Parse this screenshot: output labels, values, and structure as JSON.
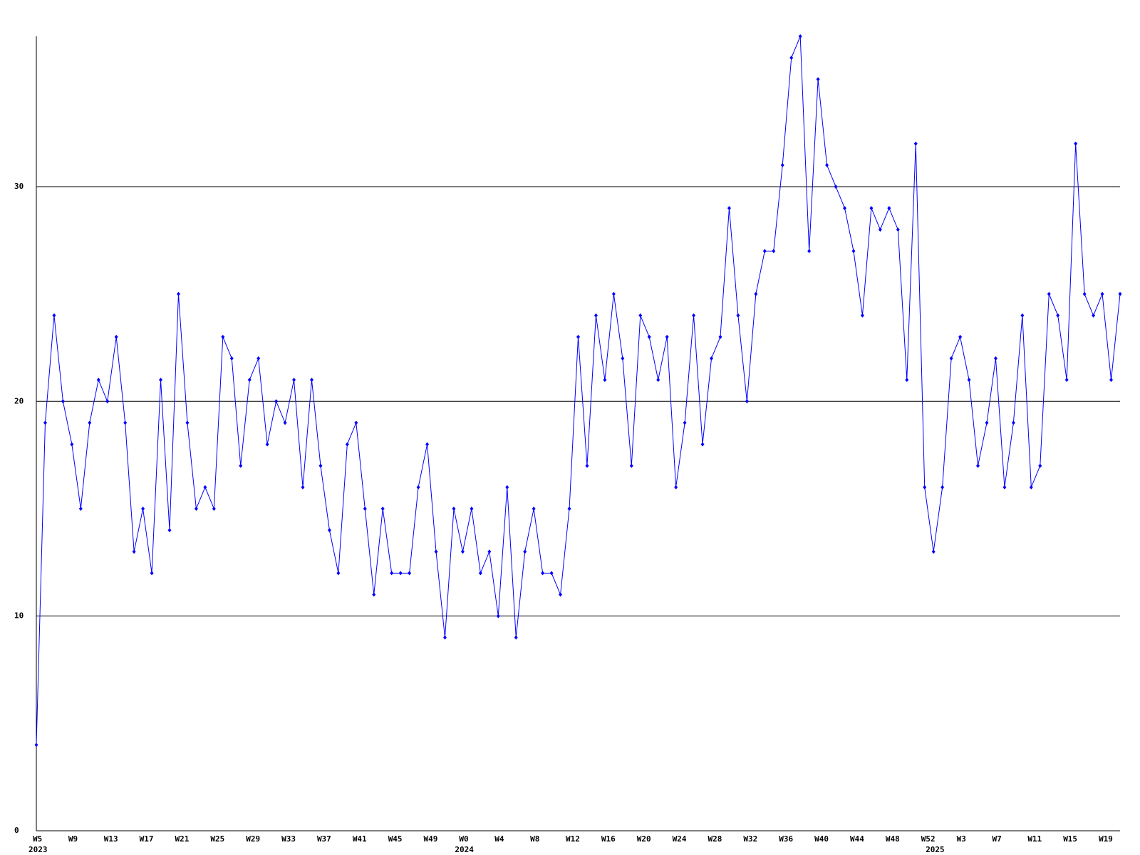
{
  "chart_data": {
    "type": "line",
    "categories": [
      "W5",
      null,
      null,
      null,
      "W9",
      null,
      null,
      null,
      "W13",
      null,
      null,
      null,
      "W17",
      null,
      null,
      null,
      "W21",
      null,
      null,
      null,
      "W25",
      null,
      null,
      null,
      "W29",
      null,
      null,
      null,
      "W33",
      null,
      null,
      null,
      "W37",
      null,
      null,
      null,
      "W41",
      null,
      null,
      null,
      "W45",
      null,
      null,
      null,
      "W49",
      null,
      null,
      null,
      "W0",
      null,
      null,
      null,
      "W4",
      null,
      null,
      null,
      "W8",
      null,
      null,
      null,
      "W12",
      null,
      null,
      null,
      "W16",
      null,
      null,
      null,
      "W20",
      null,
      null,
      null,
      "W24",
      null,
      null,
      null,
      "W28",
      null,
      null,
      null,
      "W32",
      null,
      null,
      null,
      "W36",
      null,
      null,
      null,
      "W40",
      null,
      null,
      null,
      "W44",
      null,
      null,
      null,
      "W48",
      null,
      null,
      null,
      "W52",
      null,
      null,
      null,
      "W3",
      null,
      null,
      null,
      "W7",
      null,
      null,
      null,
      "W11",
      null,
      null,
      null,
      "W15",
      null,
      null,
      null,
      "W19",
      null,
      null
    ],
    "years": [
      "2023",
      null,
      null,
      null,
      null,
      null,
      null,
      null,
      null,
      null,
      null,
      null,
      null,
      null,
      null,
      null,
      null,
      null,
      null,
      null,
      null,
      null,
      null,
      null,
      null,
      null,
      null,
      null,
      null,
      null,
      null,
      null,
      null,
      null,
      null,
      null,
      null,
      null,
      null,
      null,
      null,
      null,
      null,
      null,
      null,
      null,
      null,
      null,
      "2024",
      null,
      null,
      null,
      null,
      null,
      null,
      null,
      null,
      null,
      null,
      null,
      null,
      null,
      null,
      null,
      null,
      null,
      null,
      null,
      null,
      null,
      null,
      null,
      null,
      null,
      null,
      null,
      null,
      null,
      null,
      null,
      null,
      null,
      null,
      null,
      null,
      null,
      null,
      null,
      null,
      null,
      null,
      null,
      null,
      null,
      null,
      null,
      null,
      null,
      null,
      null,
      null,
      "2025",
      null,
      null,
      null,
      null,
      null,
      null,
      null,
      null,
      null,
      null,
      null,
      null,
      null,
      null,
      null,
      null,
      null,
      null,
      null,
      null,
      null
    ],
    "series": [
      {
        "color": "#0000ff",
        "values": [
          4,
          19,
          24,
          20,
          18,
          15,
          19,
          21,
          20,
          23,
          19,
          13,
          15,
          12,
          21,
          14,
          25,
          19,
          15,
          16,
          15,
          23,
          22,
          17,
          21,
          22,
          18,
          20,
          19,
          21,
          16,
          21,
          17,
          14,
          12,
          18,
          19,
          15,
          11,
          15,
          12,
          12,
          12,
          16,
          18,
          13,
          9,
          15,
          13,
          15,
          12,
          13,
          10,
          16,
          9,
          13,
          15,
          12,
          12,
          11,
          15,
          23,
          17,
          24,
          21,
          25,
          22,
          17,
          24,
          23,
          21,
          23,
          16,
          19,
          24,
          18,
          22,
          23,
          29,
          24,
          20,
          25,
          27,
          27,
          31,
          36,
          37,
          27,
          35,
          31,
          30,
          29,
          27,
          24,
          29,
          28,
          29,
          28,
          21,
          32,
          16,
          13,
          16,
          22,
          23,
          21,
          17,
          19,
          22,
          16,
          19,
          24,
          16,
          17,
          25,
          24,
          21,
          32,
          25,
          24,
          25,
          21,
          25
        ]
      }
    ],
    "ylim": [
      0,
      37
    ],
    "yticks": [
      0,
      10,
      20,
      30
    ],
    "grid": true
  }
}
